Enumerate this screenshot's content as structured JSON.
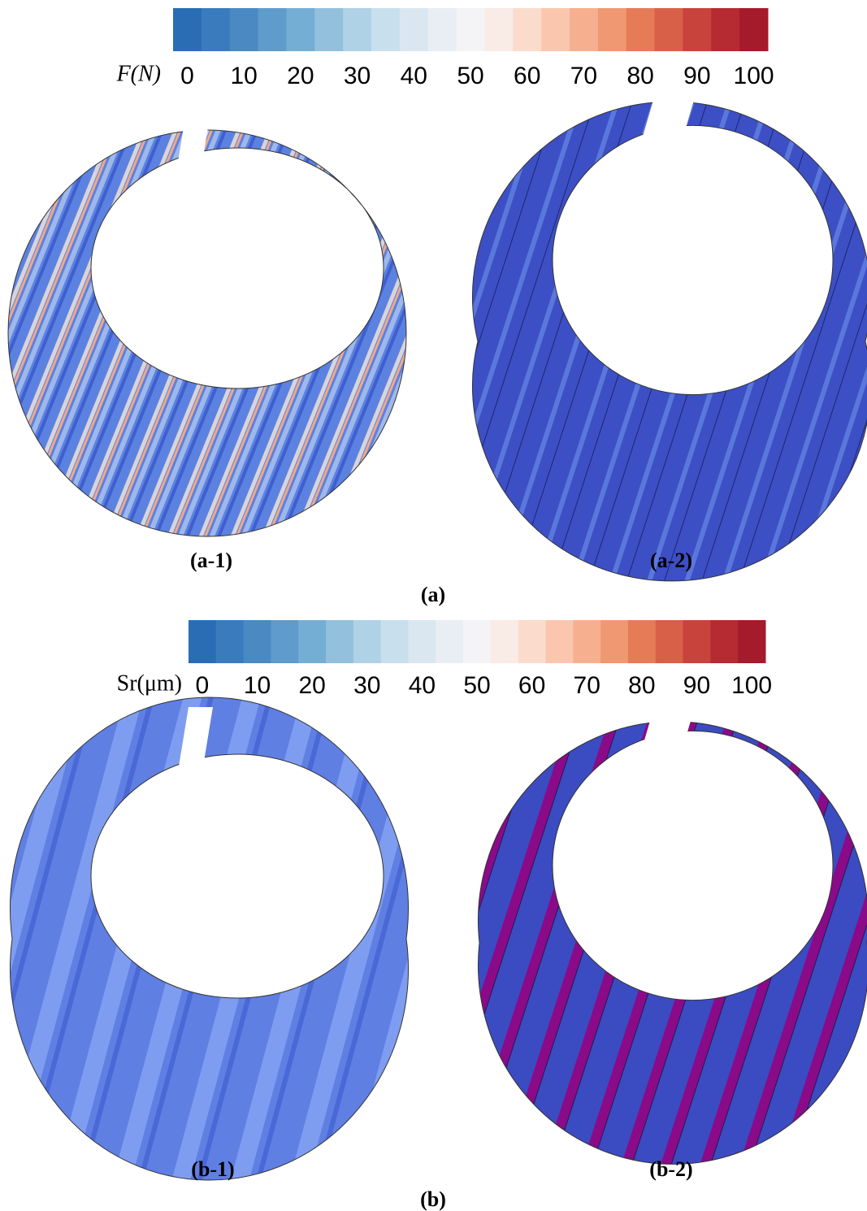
{
  "figure_a": {
    "colorbar": {
      "label": "F(N)",
      "lim": [
        0,
        100
      ],
      "ticks": [
        0,
        10,
        20,
        30,
        40,
        50,
        60,
        70,
        80,
        90,
        100
      ],
      "colors": [
        "#2a6db5",
        "#3a7bbd",
        "#4b89c2",
        "#5f9bcb",
        "#75aed4",
        "#92c0dd",
        "#b0d2e7",
        "#c8dfee",
        "#dae7f1",
        "#e9eef5",
        "#f4f4f7",
        "#f9ebe6",
        "#fbdccc",
        "#fac7ae",
        "#f6b08f",
        "#f09872",
        "#e67b58",
        "#d85f48",
        "#c8433c",
        "#b62a31",
        "#a51b2b"
      ]
    },
    "panels": [
      {
        "label": "(a-1)"
      },
      {
        "label": "(a-2)"
      }
    ],
    "caption": "(a)"
  },
  "figure_b": {
    "colorbar": {
      "label": "Sr(μm)",
      "lim": [
        0,
        100
      ],
      "ticks": [
        0,
        10,
        20,
        30,
        40,
        50,
        60,
        70,
        80,
        90,
        100
      ],
      "colors": [
        "#2a6db5",
        "#3a7bbd",
        "#4b89c2",
        "#5f9bcb",
        "#75aed4",
        "#92c0dd",
        "#b0d2e7",
        "#c8dfee",
        "#dae7f1",
        "#e9eef5",
        "#f4f4f7",
        "#f9ebe6",
        "#fbdccc",
        "#fac7ae",
        "#f6b08f",
        "#f09872",
        "#e67b58",
        "#d85f48",
        "#c8433c",
        "#b62a31",
        "#a51b2b"
      ]
    },
    "panels": [
      {
        "label": "(b-1)"
      },
      {
        "label": "(b-2)"
      }
    ],
    "caption": "(b)"
  }
}
